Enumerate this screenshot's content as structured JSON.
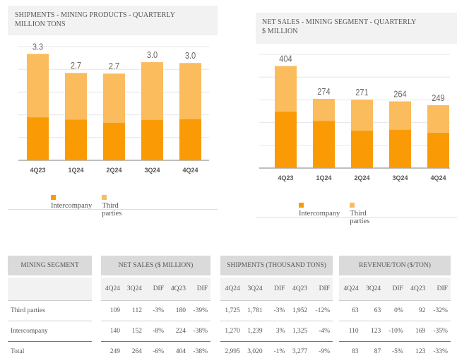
{
  "chart_data": [
    {
      "type": "bar",
      "stacked": true,
      "title": "SHIPMENTS - MINING PRODUCTS - QUARTERLY",
      "subtitle": "MILLION TONS",
      "categories": [
        "4Q23",
        "1Q24",
        "2Q24",
        "3Q24",
        "4Q24"
      ],
      "series": [
        {
          "name": "Intercompany",
          "color": "#fa9b05",
          "values": [
            1.325,
            1.25,
            1.16,
            1.239,
            1.27
          ]
        },
        {
          "name": "Third parties",
          "color": "#fbbc5e",
          "values": [
            1.952,
            1.44,
            1.51,
            1.781,
            1.725
          ]
        }
      ],
      "totals_labels": [
        "3.3",
        "2.7",
        "2.7",
        "3.0",
        "3.0"
      ],
      "totals": [
        3.277,
        2.69,
        2.67,
        3.02,
        2.995
      ],
      "ylim": [
        0,
        3.5
      ],
      "grid_step": 0.7,
      "legend": "bottom"
    },
    {
      "type": "bar",
      "stacked": true,
      "title": "NET SALES - MINING SEGMENT - QUARTERLY",
      "subtitle": "$ MILLION",
      "categories": [
        "4Q23",
        "1Q24",
        "2Q24",
        "3Q24",
        "4Q24"
      ],
      "series": [
        {
          "name": "Intercompany",
          "color": "#fa9b05",
          "values": [
            224,
            187,
            149,
            152,
            140
          ]
        },
        {
          "name": "Third parties",
          "color": "#fbbc5e",
          "values": [
            180,
            87,
            122,
            112,
            109
          ]
        }
      ],
      "totals_labels": [
        "404",
        "274",
        "271",
        "264",
        "249"
      ],
      "totals": [
        404,
        274,
        271,
        264,
        249
      ],
      "ylim": [
        0,
        450
      ],
      "grid_step": 90,
      "legend": "bottom"
    }
  ],
  "table": {
    "row_header": "MINING SEGMENT",
    "groups": [
      {
        "title": "NET SALES ($ MILLION)",
        "cols": [
          "4Q24",
          "3Q24",
          "DIF",
          "4Q23",
          "DIF"
        ],
        "rows": [
          [
            "109",
            "112",
            "-3%",
            "180",
            "-39%"
          ],
          [
            "140",
            "152",
            "-8%",
            "224",
            "-38%"
          ],
          [
            "249",
            "264",
            "-6%",
            "404",
            "-38%"
          ]
        ]
      },
      {
        "title": "SHIPMENTS (THOUSAND TONS)",
        "cols": [
          "4Q24",
          "3Q24",
          "DIF",
          "4Q23",
          "DIF"
        ],
        "rows": [
          [
            "1,725",
            "1,781",
            "-3%",
            "1,952",
            "-12%"
          ],
          [
            "1,270",
            "1,239",
            "3%",
            "1,325",
            "-4%"
          ],
          [
            "2,995",
            "3,020",
            "-1%",
            "3,277",
            "-9%"
          ]
        ]
      },
      {
        "title": "REVENUE/TON ($/TON)",
        "cols": [
          "4Q24",
          "3Q24",
          "DIF",
          "4Q23",
          "DIF"
        ],
        "rows": [
          [
            "63",
            "63",
            "0%",
            "92",
            "-32%"
          ],
          [
            "110",
            "123",
            "-10%",
            "169",
            "-35%"
          ],
          [
            "83",
            "87",
            "-5%",
            "123",
            "-33%"
          ]
        ]
      }
    ],
    "row_labels": [
      "Third parties",
      "Intercompany",
      "Total"
    ]
  }
}
